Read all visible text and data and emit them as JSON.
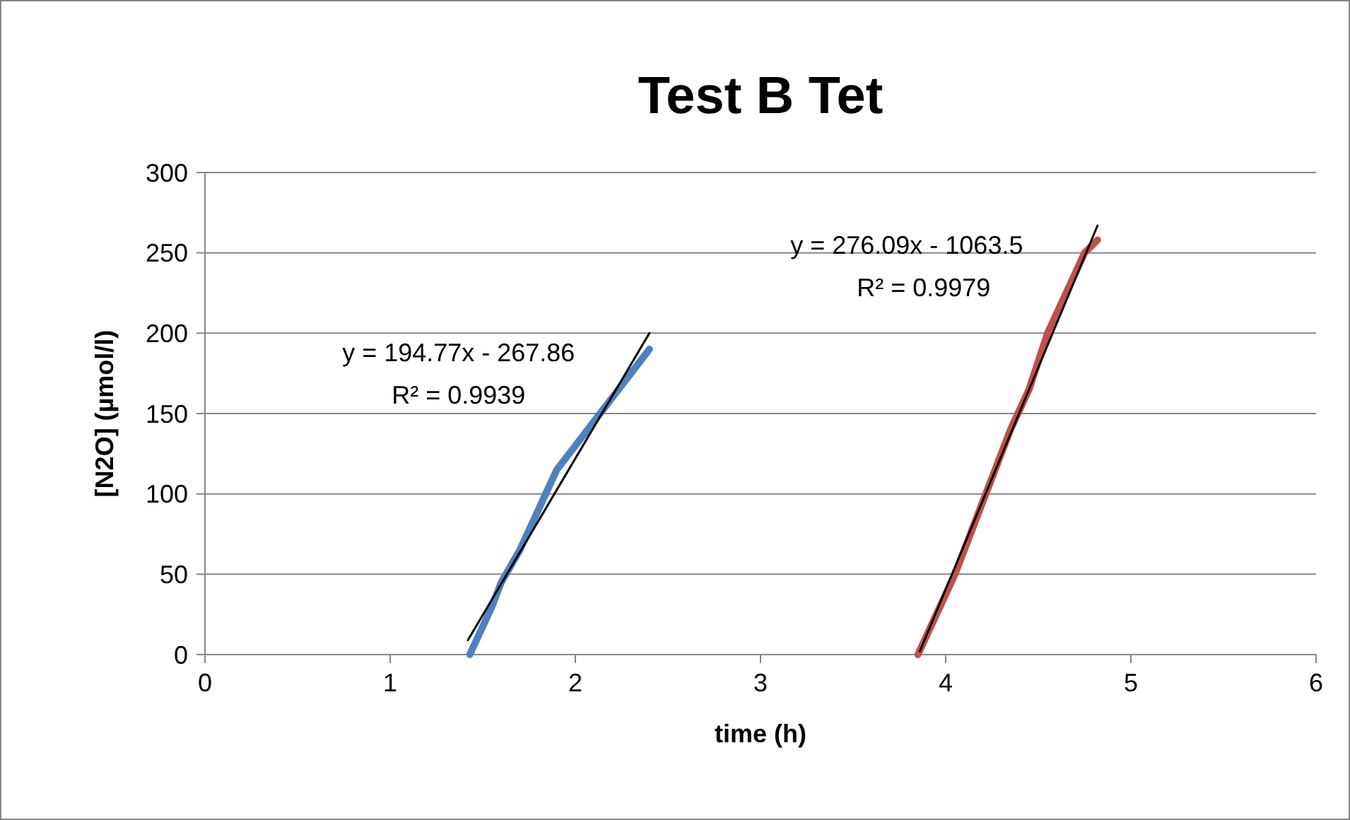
{
  "chart_data": {
    "type": "line",
    "title": "Test B Tet",
    "xlabel": "time (h)",
    "ylabel": "[N2O] (µmol/l)",
    "xlim": [
      0,
      6
    ],
    "xticks": [
      0,
      1,
      2,
      3,
      4,
      5,
      6
    ],
    "ylim": [
      0,
      300
    ],
    "yticks": [
      0,
      50,
      100,
      150,
      200,
      250,
      300
    ],
    "grid": "y",
    "marker": "none",
    "line_style": "solid",
    "series": [
      {
        "color": "#4f81bd",
        "x": [
          1.43,
          1.47,
          1.55,
          1.6,
          1.7,
          1.78,
          1.88,
          1.9,
          2.0,
          2.1,
          2.2,
          2.3,
          2.4
        ],
        "values": [
          0,
          10,
          30,
          45,
          65,
          85,
          110,
          115,
          130,
          145,
          160,
          175,
          190
        ]
      },
      {
        "color": "#c0504d",
        "x": [
          3.85,
          3.95,
          4.05,
          4.15,
          4.25,
          4.35,
          4.45,
          4.55,
          4.65,
          4.75,
          4.82
        ],
        "values": [
          0,
          25,
          50,
          80,
          110,
          140,
          165,
          200,
          225,
          250,
          258
        ]
      },
      {
        "type": "line",
        "color": "#000000",
        "x": [
          1.42,
          2.4
        ],
        "values": [
          9,
          200
        ]
      },
      {
        "type": "line",
        "color": "#000000",
        "x": [
          3.86,
          4.82
        ],
        "values": [
          2,
          267
        ]
      }
    ],
    "annotations": [
      "y = 194.77x - 267.86",
      "R² = 0.9939",
      "y = 276.09x - 1063.5",
      "R² = 0.9979"
    ]
  }
}
